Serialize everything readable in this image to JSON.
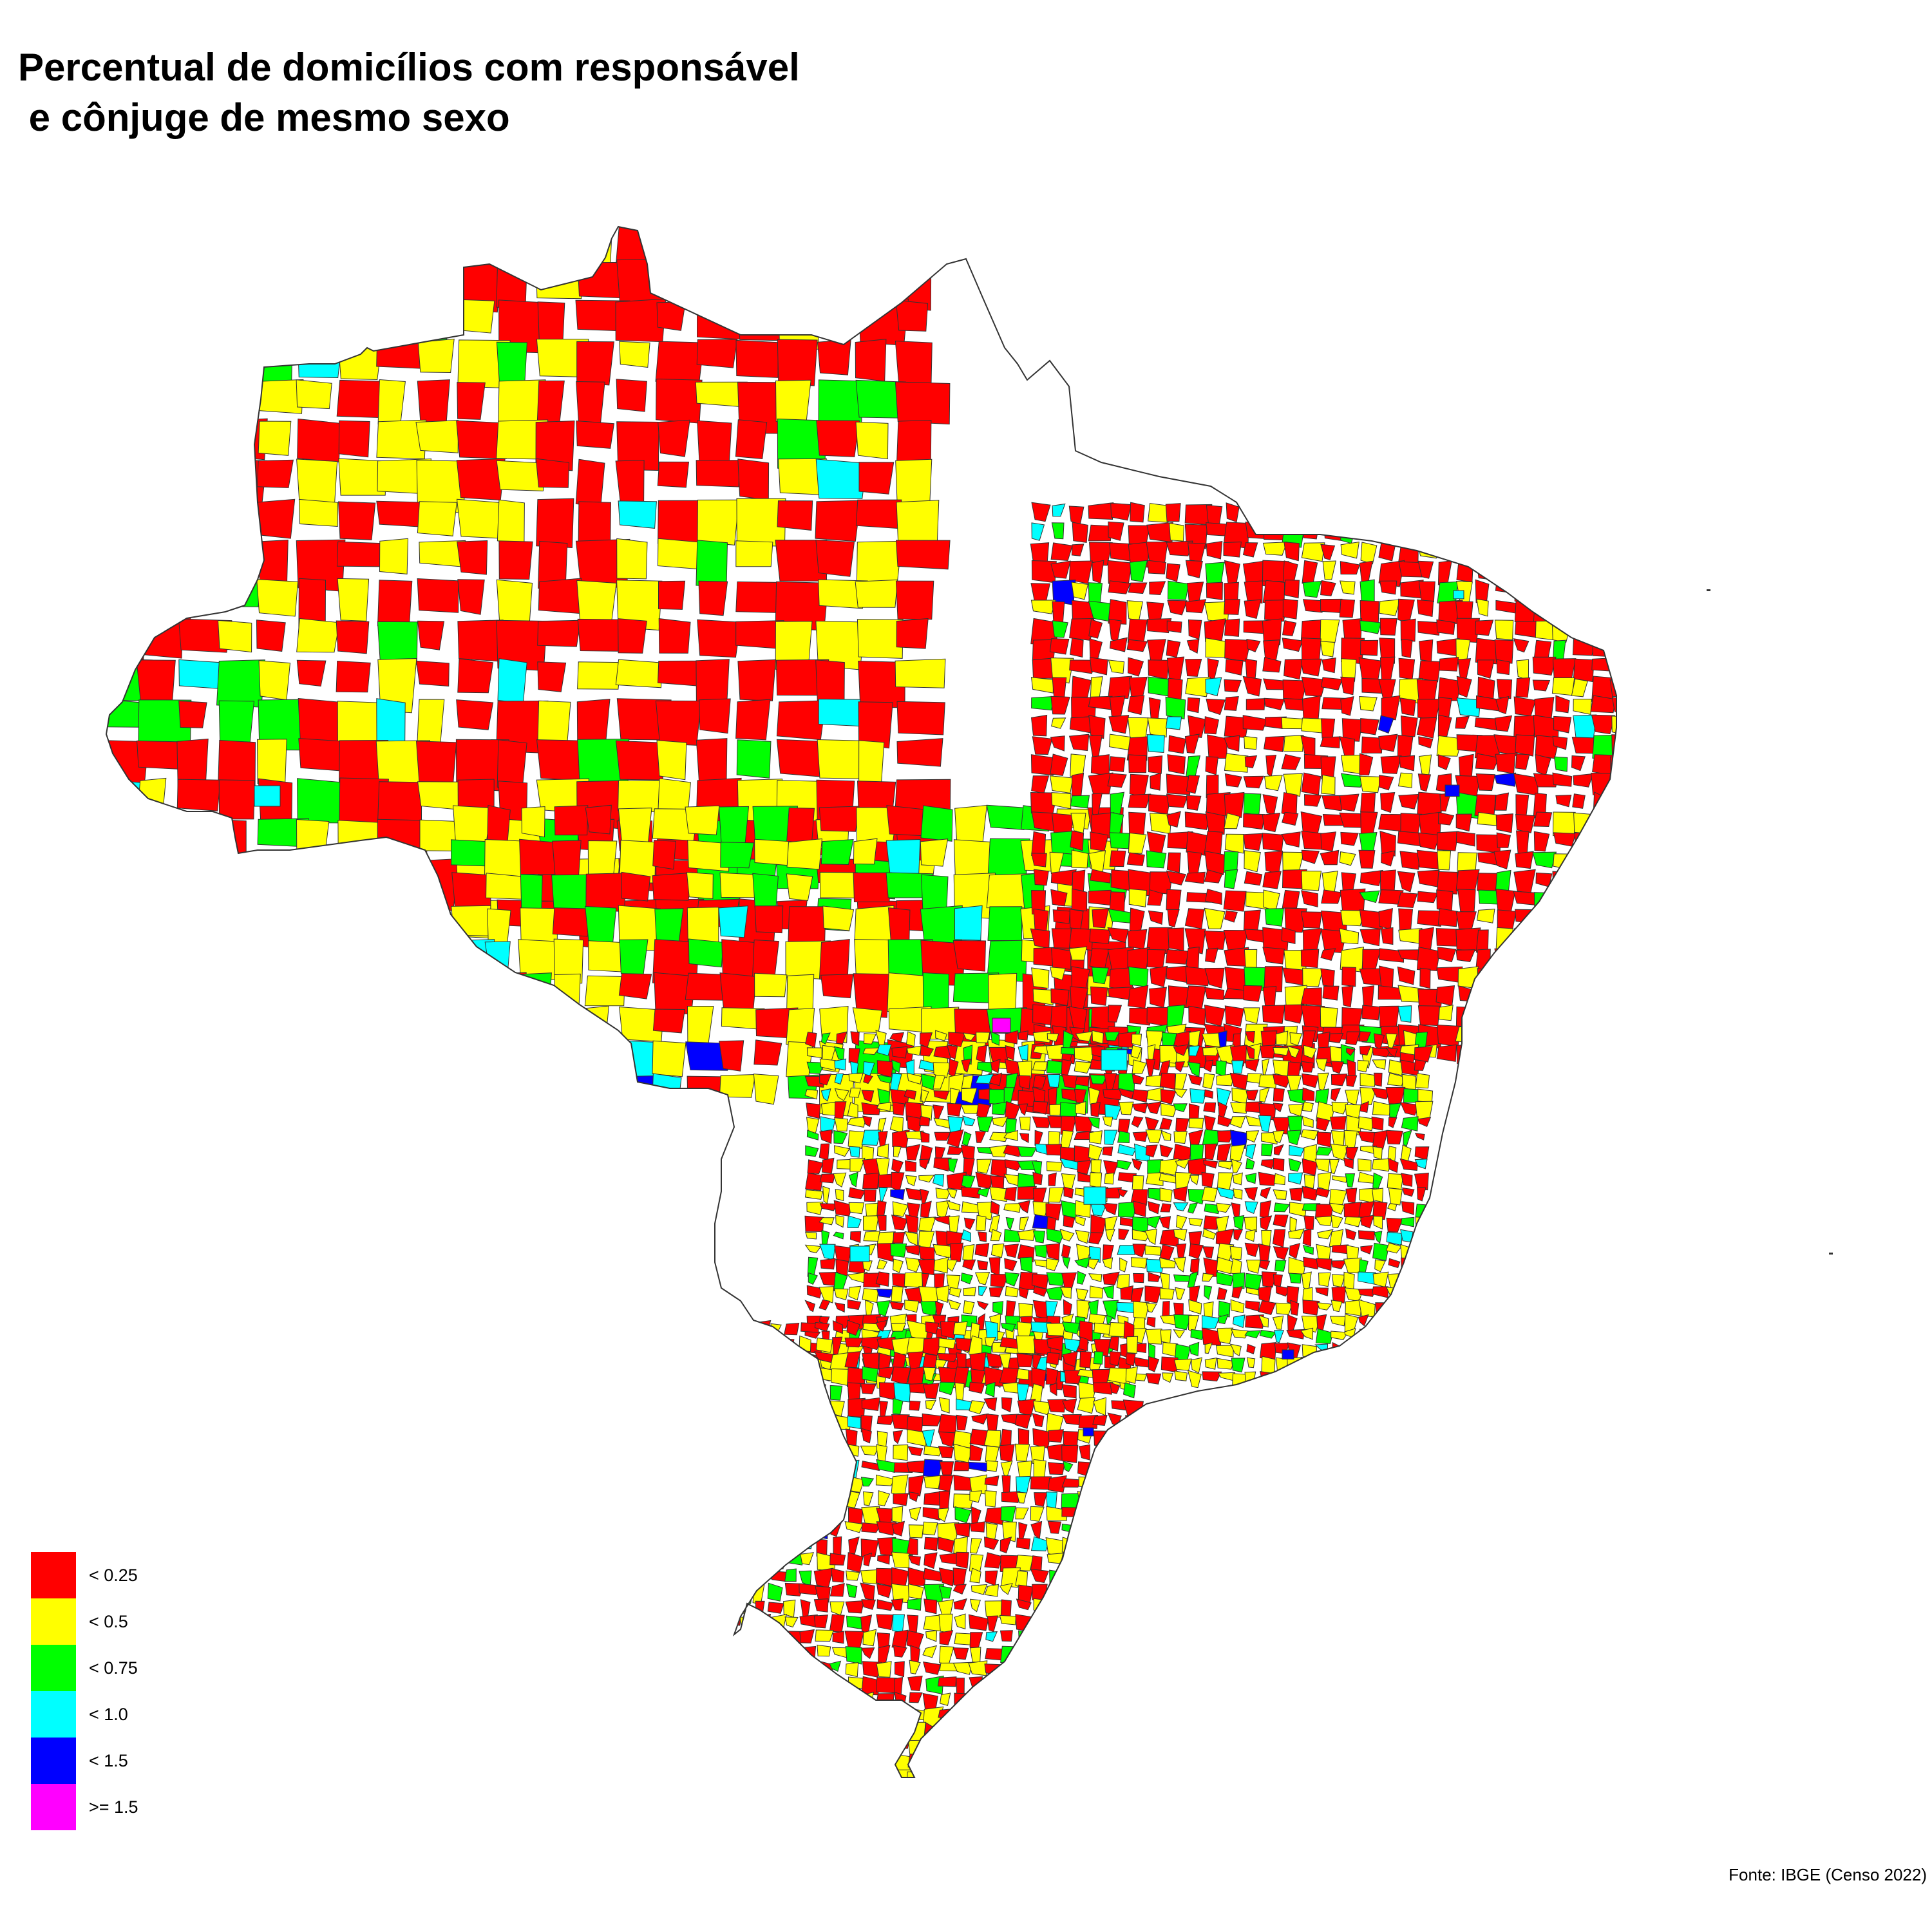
{
  "title": "Percentual de domicílios com responsável\n e cônjuge de mesmo sexo",
  "source": "Fonte: IBGE (Censo 2022)",
  "legend": [
    {
      "label": "< 0.25",
      "color": "#ff0000"
    },
    {
      "label": "< 0.5",
      "color": "#ffff00"
    },
    {
      "label": "< 0.75",
      "color": "#00ff00"
    },
    {
      "label": "< 1.0",
      "color": "#00ffff"
    },
    {
      "label": "< 1.5",
      "color": "#0000ff"
    },
    {
      "label": ">= 1.5",
      "color": "#ff00ff"
    }
  ],
  "colors": {
    "border": "#333333",
    "background": "#ffffff"
  }
}
